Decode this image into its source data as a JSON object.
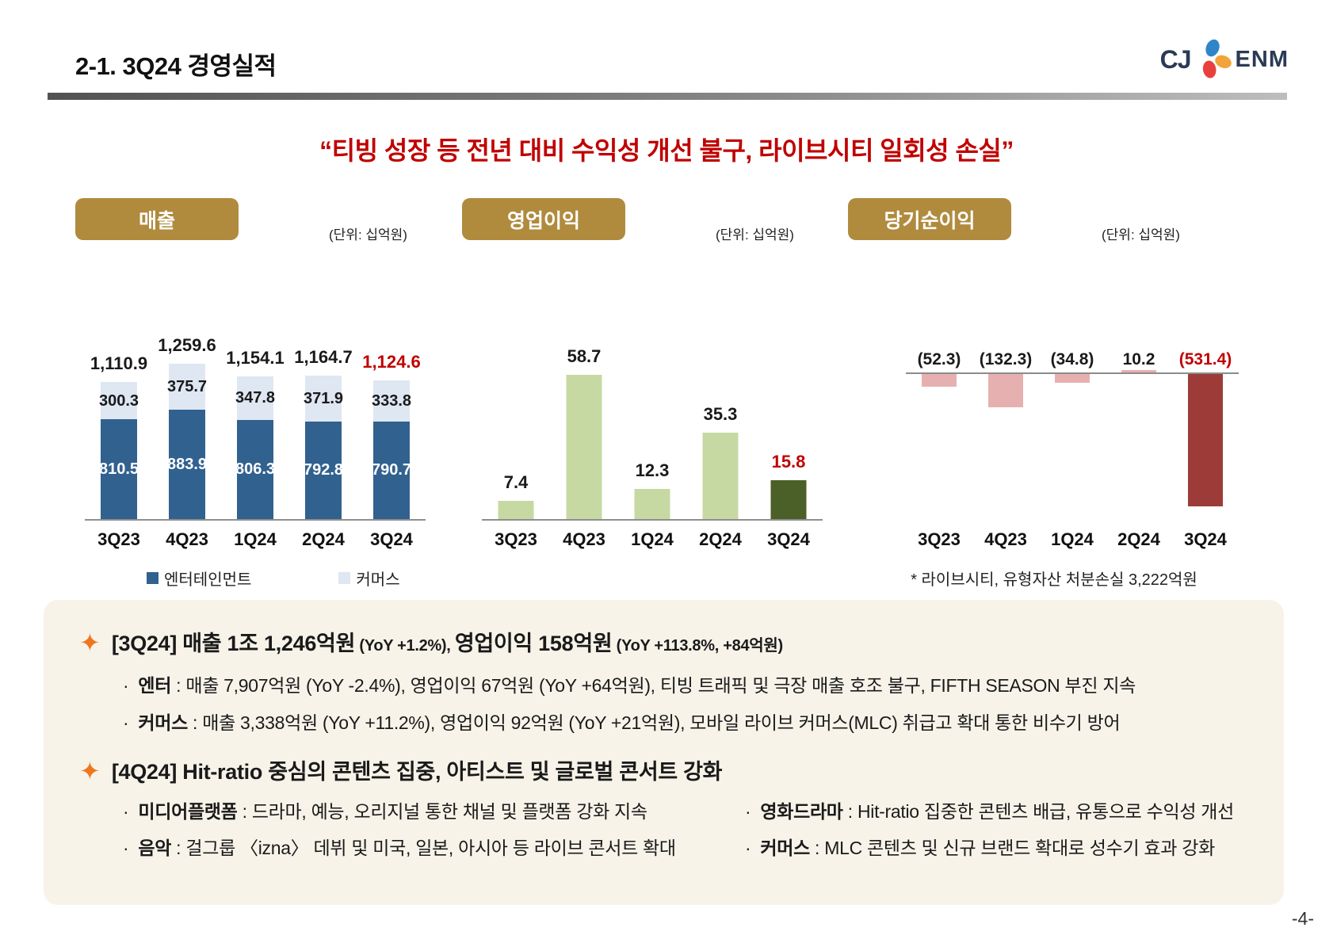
{
  "slide": {
    "title": "2-1. 3Q24 경영실적",
    "headline": "“티빙 성장 등 전년 대비 수익성 개선 불구, 라이브시티 일회성 손실”",
    "page_number": "-4-",
    "bullet_icon": "✦",
    "logo": {
      "cj": "CJ",
      "enm": "ENM"
    }
  },
  "colors": {
    "badge_bg": "#B08B3E",
    "accent_red": "#C00000",
    "panel_bg": "#F7F3E9",
    "sparkle": "#F0761E",
    "axis": "#8C8C8C"
  },
  "chart_data": [
    {
      "type": "bar",
      "variant": "stacked",
      "title": "매출",
      "unit_label": "(단위: 십억원)",
      "categories": [
        "3Q23",
        "4Q23",
        "1Q24",
        "2Q24",
        "3Q24"
      ],
      "series": [
        {
          "name": "엔터테인먼트",
          "values": [
            810.5,
            883.9,
            806.3,
            792.8,
            790.7
          ],
          "labels": [
            "810.5",
            "883.9",
            "806.3",
            "792.8",
            "790.7"
          ],
          "color": "#31618F"
        },
        {
          "name": "커머스",
          "values": [
            300.3,
            375.7,
            347.8,
            371.9,
            333.8
          ],
          "labels": [
            "300.3",
            "375.7",
            "347.8",
            "371.9",
            "333.8"
          ],
          "color": "#DEE7F2"
        }
      ],
      "totals": [
        1110.9,
        1259.6,
        1154.1,
        1164.7,
        1124.6
      ],
      "total_labels": [
        "1,110.9",
        "1,259.6",
        "1,154.1",
        "1,164.7",
        "1,124.6"
      ],
      "highlight_last_index": 4,
      "legend_position": "bottom",
      "ylim": [
        0,
        1300
      ],
      "grid": false
    },
    {
      "type": "bar",
      "title": "영업이익",
      "unit_label": "(단위: 십억원)",
      "categories": [
        "3Q23",
        "4Q23",
        "1Q24",
        "2Q24",
        "3Q24"
      ],
      "values": [
        7.4,
        58.7,
        12.3,
        35.3,
        15.8
      ],
      "labels": [
        "7.4",
        "58.7",
        "12.3",
        "35.3",
        "15.8"
      ],
      "bar_colors": [
        "#C7D9A2",
        "#C7D9A2",
        "#C7D9A2",
        "#C7D9A2",
        "#4B5F28"
      ],
      "label_colors": [
        "#1a1a1a",
        "#1a1a1a",
        "#1a1a1a",
        "#1a1a1a",
        "#C00000"
      ],
      "ylim": [
        0,
        65
      ],
      "grid": false
    },
    {
      "type": "bar",
      "title": "당기순이익",
      "unit_label": "(단위: 십억원)",
      "categories": [
        "3Q23",
        "4Q23",
        "1Q24",
        "2Q24",
        "3Q24"
      ],
      "values": [
        -52.3,
        -132.3,
        -34.8,
        10.2,
        -531.4
      ],
      "labels": [
        "(52.3)",
        "(132.3)",
        "(34.8)",
        "10.2",
        "(531.4)"
      ],
      "bar_colors": [
        "#E7B0B0",
        "#E7B0B0",
        "#E7B0B0",
        "#E7B0B0",
        "#9D3B38"
      ],
      "label_colors": [
        "#1a1a1a",
        "#1a1a1a",
        "#1a1a1a",
        "#1a1a1a",
        "#C00000"
      ],
      "footnote": "* 라이브시티, 유형자산 처분손실 3,222억원",
      "ylim": [
        -560,
        40
      ],
      "grid": false
    }
  ],
  "summary": {
    "bullet_separator": " : ",
    "sections": [
      {
        "heading": [
          {
            "t": "[3Q24] 매출 1조 1,246억원",
            "small": false
          },
          {
            "t": " (YoY +1.2%), ",
            "small": true
          },
          {
            "t": "영업이익 158억원",
            "small": false
          },
          {
            "t": " (YoY +113.8%, +84억원)",
            "small": true
          }
        ],
        "bullets": [
          {
            "term": "엔터",
            "text": "매출 7,907억원 (YoY -2.4%), 영업이익 67억원 (YoY +64억원), 티빙 트래픽 및 극장 매출 호조 불구, FIFTH SEASON 부진 지속"
          },
          {
            "term": "커머스",
            "text": "매출 3,338억원 (YoY +11.2%), 영업이익 92억원 (YoY +21억원), 모바일 라이브 커머스(MLC) 취급고 확대 통한 비수기 방어"
          }
        ]
      },
      {
        "heading": [
          {
            "t": "[4Q24] Hit-ratio 중심의 콘텐츠 집중, 아티스트 및 글로벌 콘서트 강화",
            "small": false
          }
        ],
        "bullets_grid": [
          {
            "term": "미디어플랫폼",
            "text": "드라마, 예능, 오리지널 통한 채널 및 플랫폼 강화 지속"
          },
          {
            "term": "영화드라마",
            "text": "Hit-ratio 집중한 콘텐츠 배급, 유통으로 수익성 개선"
          },
          {
            "term": "음악",
            "text": "걸그룹 〈izna〉 데뷔 및 미국, 일본, 아시아 등 라이브 콘서트 확대"
          },
          {
            "term": "커머스",
            "text": "MLC 콘텐츠 및 신규 브랜드 확대로 성수기 효과 강화"
          }
        ]
      }
    ]
  }
}
